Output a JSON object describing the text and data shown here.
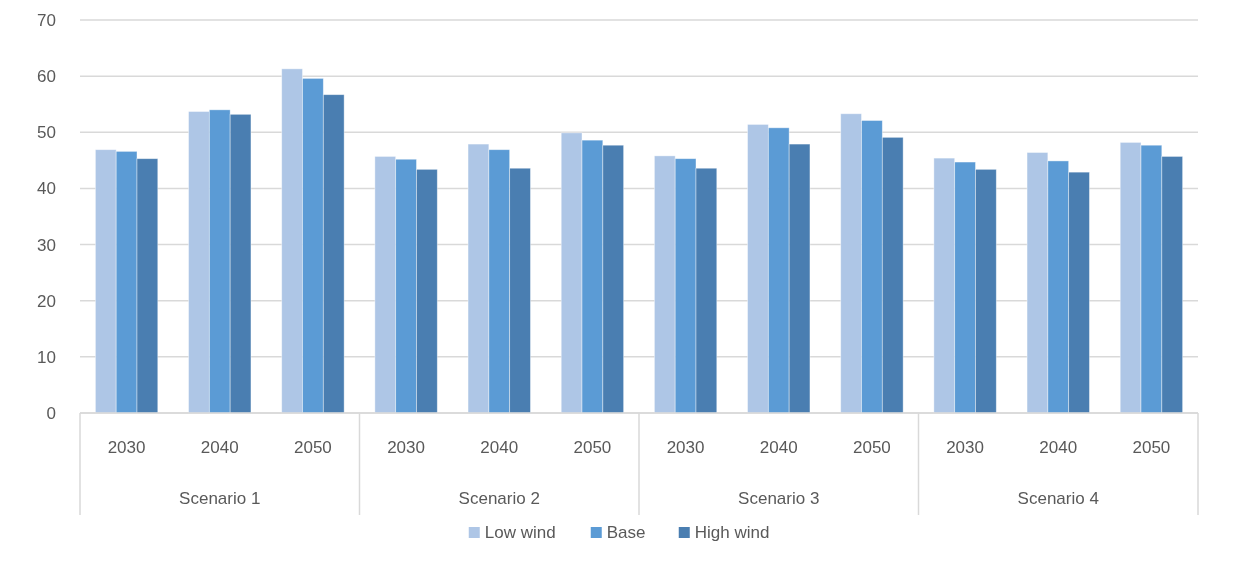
{
  "chart_data": {
    "type": "bar",
    "categories": [
      "2030",
      "2040",
      "2050",
      "2030",
      "2040",
      "2050",
      "2030",
      "2040",
      "2050",
      "2030",
      "2040",
      "2050"
    ],
    "annotations": [
      "Scenario 1",
      "Scenario 2",
      "Scenario 3",
      "Scenario 4"
    ],
    "series": [
      {
        "name": "Low wind",
        "color": "#aec6e6",
        "values": [
          46.9,
          53.7,
          61.3,
          45.7,
          47.9,
          49.9,
          45.8,
          51.4,
          53.3,
          45.4,
          46.4,
          48.2
        ]
      },
      {
        "name": "Base",
        "color": "#5b9bd5",
        "values": [
          46.6,
          54.0,
          59.6,
          45.2,
          46.9,
          48.6,
          45.3,
          50.8,
          52.1,
          44.7,
          44.9,
          47.7
        ]
      },
      {
        "name": "High wind",
        "color": "#4a7eb1",
        "values": [
          45.3,
          53.2,
          56.7,
          43.4,
          43.6,
          47.7,
          43.6,
          47.9,
          49.1,
          43.4,
          42.9,
          45.7
        ]
      }
    ],
    "ylim": [
      0,
      70
    ],
    "yticks": [
      0,
      10,
      20,
      30,
      40,
      50,
      60,
      70
    ],
    "grid": "y",
    "legend": "bottom"
  }
}
